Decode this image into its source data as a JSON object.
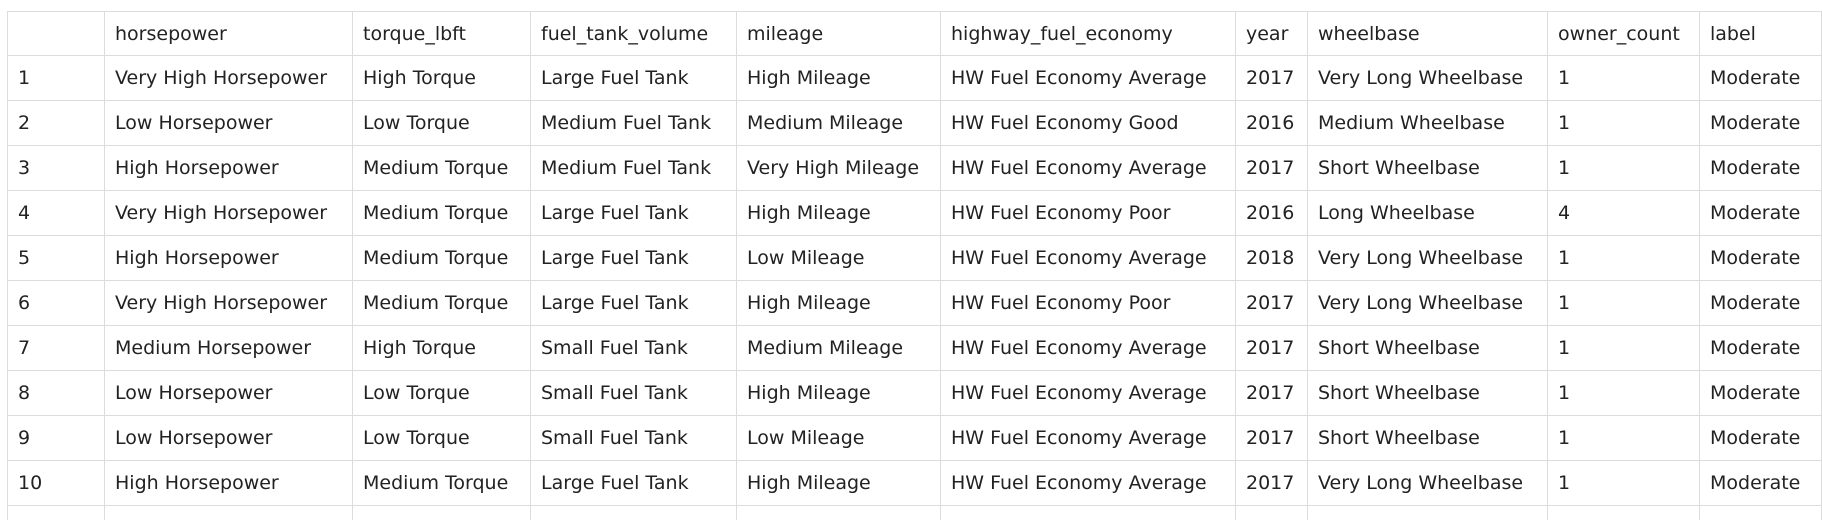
{
  "table": {
    "columns": [
      "",
      "horsepower",
      "torque_lbft",
      "fuel_tank_volume",
      "mileage",
      "highway_fuel_economy",
      "year",
      "wheelbase",
      "owner_count",
      "label"
    ],
    "rows": [
      [
        "1",
        "Very High Horsepower",
        "High Torque",
        "Large Fuel Tank",
        "High Mileage",
        "HW Fuel Economy Average",
        "2017",
        "Very Long Wheelbase",
        "1",
        "Moderate"
      ],
      [
        "2",
        "Low Horsepower",
        "Low Torque",
        "Medium Fuel Tank",
        "Medium Mileage",
        "HW Fuel Economy Good",
        "2016",
        "Medium Wheelbase",
        "1",
        "Moderate"
      ],
      [
        "3",
        "High Horsepower",
        "Medium Torque",
        "Medium Fuel Tank",
        "Very High Mileage",
        "HW Fuel Economy Average",
        "2017",
        "Short Wheelbase",
        "1",
        "Moderate"
      ],
      [
        "4",
        "Very High Horsepower",
        "Medium Torque",
        "Large Fuel Tank",
        "High Mileage",
        "HW Fuel Economy Poor",
        "2016",
        "Long Wheelbase",
        "4",
        "Moderate"
      ],
      [
        "5",
        "High Horsepower",
        "Medium Torque",
        "Large Fuel Tank",
        "Low Mileage",
        "HW Fuel Economy Average",
        "2018",
        "Very Long Wheelbase",
        "1",
        "Moderate"
      ],
      [
        "6",
        "Very High Horsepower",
        "Medium Torque",
        "Large Fuel Tank",
        "High Mileage",
        "HW Fuel Economy Poor",
        "2017",
        "Very Long Wheelbase",
        "1",
        "Moderate"
      ],
      [
        "7",
        "Medium Horsepower",
        "High Torque",
        "Small Fuel Tank",
        "Medium Mileage",
        "HW Fuel Economy Average",
        "2017",
        "Short Wheelbase",
        "1",
        "Moderate"
      ],
      [
        "8",
        "Low Horsepower",
        "Low Torque",
        "Small Fuel Tank",
        "High Mileage",
        "HW Fuel Economy Average",
        "2017",
        "Short Wheelbase",
        "1",
        "Moderate"
      ],
      [
        "9",
        "Low Horsepower",
        "Low Torque",
        "Small Fuel Tank",
        "Low Mileage",
        "HW Fuel Economy Average",
        "2017",
        "Short Wheelbase",
        "1",
        "Moderate"
      ],
      [
        "10",
        "High Horsepower",
        "Medium Torque",
        "Large Fuel Tank",
        "High Mileage",
        "HW Fuel Economy Average",
        "2017",
        "Very Long Wheelbase",
        "1",
        "Moderate"
      ]
    ]
  }
}
